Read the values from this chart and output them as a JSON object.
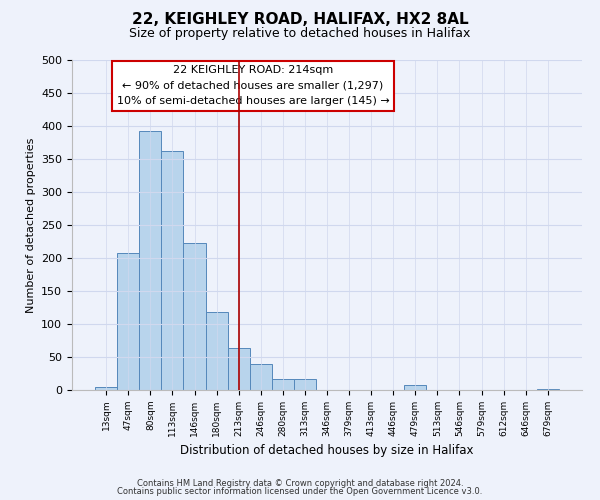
{
  "title": "22, KEIGHLEY ROAD, HALIFAX, HX2 8AL",
  "subtitle": "Size of property relative to detached houses in Halifax",
  "xlabel": "Distribution of detached houses by size in Halifax",
  "ylabel": "Number of detached properties",
  "bar_labels": [
    "13sqm",
    "47sqm",
    "80sqm",
    "113sqm",
    "146sqm",
    "180sqm",
    "213sqm",
    "246sqm",
    "280sqm",
    "313sqm",
    "346sqm",
    "379sqm",
    "413sqm",
    "446sqm",
    "479sqm",
    "513sqm",
    "546sqm",
    "579sqm",
    "612sqm",
    "646sqm",
    "679sqm"
  ],
  "bar_values": [
    5,
    207,
    393,
    362,
    222,
    118,
    63,
    40,
    16,
    16,
    0,
    0,
    0,
    0,
    8,
    0,
    0,
    0,
    0,
    0,
    2
  ],
  "bar_color": "#b8d4ec",
  "bar_edge_color": "#5588bb",
  "vline_x_index": 6,
  "vline_color": "#aa0000",
  "annotation_title": "22 KEIGHLEY ROAD: 214sqm",
  "annotation_line1": "← 90% of detached houses are smaller (1,297)",
  "annotation_line2": "10% of semi-detached houses are larger (145) →",
  "annotation_box_color": "#ffffff",
  "annotation_box_edge": "#cc0000",
  "ylim": [
    0,
    500
  ],
  "yticks": [
    0,
    50,
    100,
    150,
    200,
    250,
    300,
    350,
    400,
    450,
    500
  ],
  "footer_line1": "Contains HM Land Registry data © Crown copyright and database right 2024.",
  "footer_line2": "Contains public sector information licensed under the Open Government Licence v3.0.",
  "bg_color": "#eef2fb"
}
